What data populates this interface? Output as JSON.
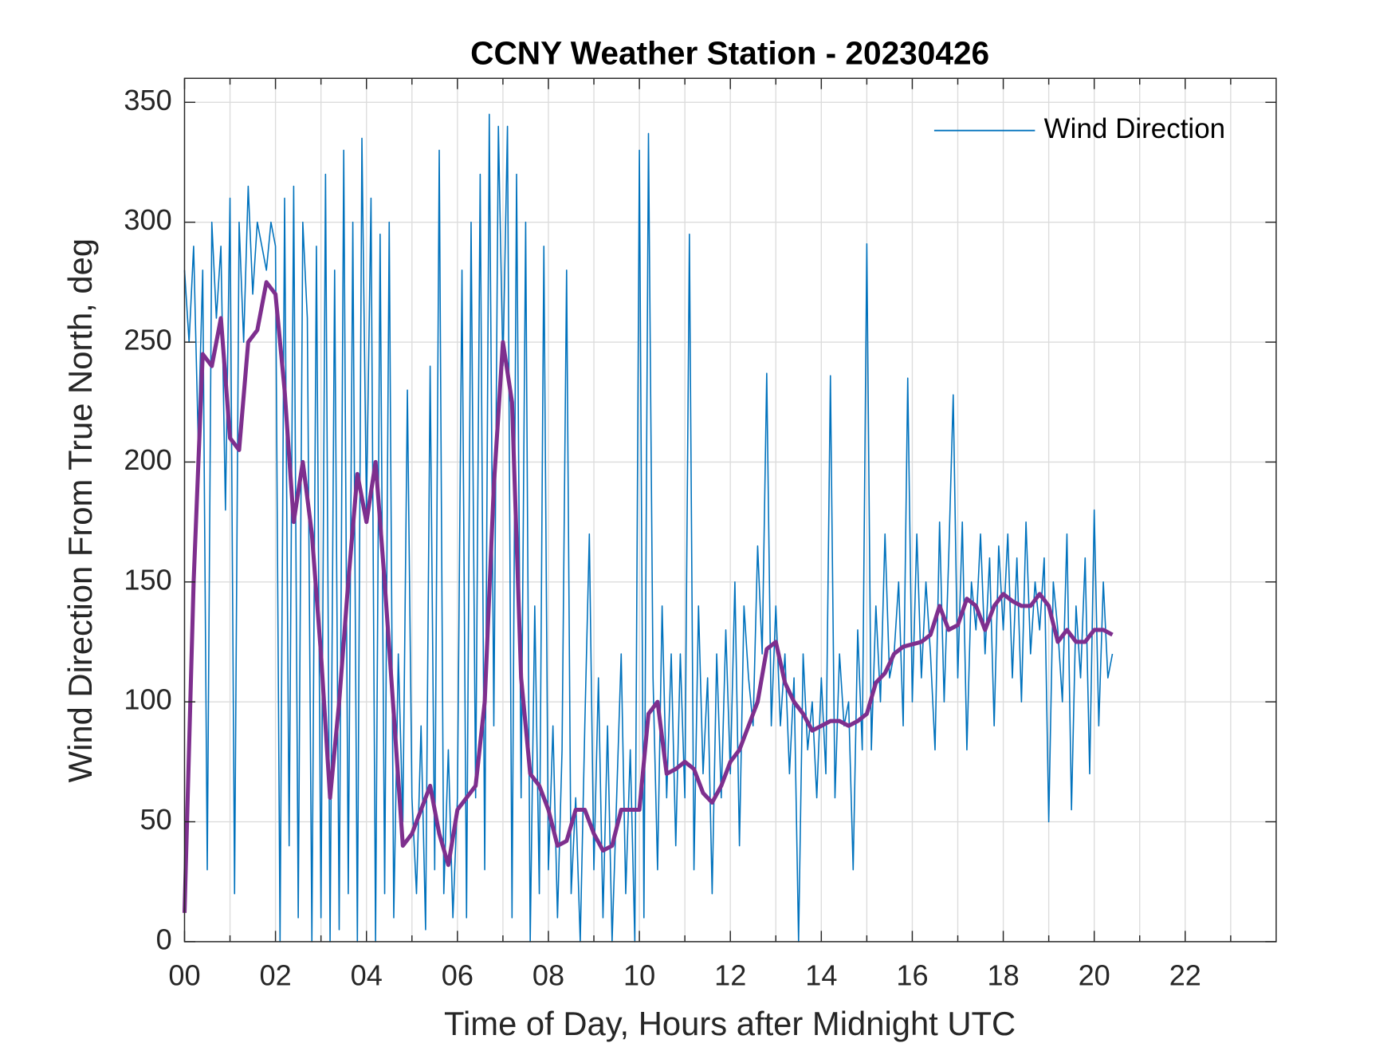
{
  "chart_data": {
    "type": "line",
    "title": "CCNY Weather Station - 20230426",
    "xlabel": "Time of Day, Hours after Midnight UTC",
    "ylabel": "Wind Direction From True North, deg",
    "xlim": [
      0,
      24
    ],
    "ylim": [
      0,
      360
    ],
    "xticks": [
      {
        "value": 0,
        "label": "00"
      },
      {
        "value": 2,
        "label": "02"
      },
      {
        "value": 4,
        "label": "04"
      },
      {
        "value": 6,
        "label": "06"
      },
      {
        "value": 8,
        "label": "08"
      },
      {
        "value": 10,
        "label": "10"
      },
      {
        "value": 12,
        "label": "12"
      },
      {
        "value": 14,
        "label": "14"
      },
      {
        "value": 16,
        "label": "16"
      },
      {
        "value": 18,
        "label": "18"
      },
      {
        "value": 20,
        "label": "20"
      },
      {
        "value": 22,
        "label": "22"
      }
    ],
    "xminorticks": [
      1,
      3,
      5,
      7,
      9,
      11,
      13,
      15,
      17,
      19,
      21,
      23
    ],
    "yticks": [
      0,
      50,
      100,
      150,
      200,
      250,
      300,
      350
    ],
    "grid": true,
    "legend": "northeast",
    "series": [
      {
        "name": "Wind Direction",
        "color": "#0072BD",
        "width": 1.4,
        "x": [
          0,
          0.1,
          0.2,
          0.3,
          0.4,
          0.5,
          0.6,
          0.7,
          0.8,
          0.9,
          1,
          1.1,
          1.2,
          1.3,
          1.4,
          1.5,
          1.6,
          1.7,
          1.8,
          1.9,
          2,
          2.1,
          2.2,
          2.3,
          2.4,
          2.5,
          2.6,
          2.7,
          2.8,
          2.9,
          3,
          3.1,
          3.2,
          3.3,
          3.4,
          3.5,
          3.6,
          3.7,
          3.8,
          3.9,
          4,
          4.1,
          4.2,
          4.3,
          4.4,
          4.5,
          4.6,
          4.7,
          4.8,
          4.9,
          5,
          5.1,
          5.2,
          5.3,
          5.4,
          5.5,
          5.6,
          5.7,
          5.8,
          5.9,
          6,
          6.1,
          6.2,
          6.3,
          6.4,
          6.5,
          6.6,
          6.7,
          6.8,
          6.9,
          7,
          7.1,
          7.2,
          7.3,
          7.4,
          7.5,
          7.6,
          7.7,
          7.8,
          7.9,
          8,
          8.1,
          8.2,
          8.3,
          8.4,
          8.5,
          8.6,
          8.7,
          8.8,
          8.9,
          9,
          9.1,
          9.2,
          9.3,
          9.4,
          9.5,
          9.6,
          9.7,
          9.8,
          9.9,
          10,
          10.1,
          10.2,
          10.3,
          10.4,
          10.5,
          10.6,
          10.7,
          10.8,
          10.9,
          11,
          11.1,
          11.2,
          11.3,
          11.4,
          11.5,
          11.6,
          11.7,
          11.8,
          11.9,
          12,
          12.1,
          12.2,
          12.3,
          12.4,
          12.5,
          12.6,
          12.7,
          12.8,
          12.9,
          13,
          13.1,
          13.2,
          13.3,
          13.4,
          13.5,
          13.6,
          13.7,
          13.8,
          13.9,
          14,
          14.1,
          14.2,
          14.3,
          14.4,
          14.5,
          14.6,
          14.7,
          14.8,
          14.9,
          15,
          15.1,
          15.2,
          15.3,
          15.4,
          15.5,
          15.6,
          15.7,
          15.8,
          15.9,
          16,
          16.1,
          16.2,
          16.3,
          16.4,
          16.5,
          16.6,
          16.7,
          16.8,
          16.9,
          17,
          17.1,
          17.2,
          17.3,
          17.4,
          17.5,
          17.6,
          17.7,
          17.8,
          17.9,
          18,
          18.1,
          18.2,
          18.3,
          18.4,
          18.5,
          18.6,
          18.7,
          18.8,
          18.9,
          19,
          19.1,
          19.2,
          19.3,
          19.4,
          19.5,
          19.6,
          19.7,
          19.8,
          19.9,
          20,
          20.1,
          20.2,
          20.3,
          20.4
        ],
        "values": [
          280,
          250,
          290,
          210,
          280,
          30,
          300,
          260,
          290,
          180,
          310,
          20,
          300,
          250,
          315,
          270,
          300,
          290,
          280,
          300,
          290,
          0,
          310,
          40,
          315,
          10,
          300,
          260,
          0,
          290,
          10,
          320,
          0,
          280,
          5,
          330,
          20,
          300,
          0,
          335,
          180,
          310,
          0,
          295,
          20,
          300,
          10,
          120,
          50,
          230,
          60,
          20,
          90,
          5,
          240,
          30,
          330,
          20,
          80,
          10,
          60,
          280,
          10,
          300,
          60,
          320,
          30,
          345,
          90,
          340,
          240,
          340,
          10,
          320,
          60,
          300,
          0,
          140,
          20,
          290,
          30,
          90,
          10,
          80,
          280,
          20,
          60,
          0,
          90,
          170,
          30,
          110,
          10,
          90,
          0,
          60,
          120,
          20,
          80,
          0,
          330,
          10,
          337,
          110,
          30,
          140,
          60,
          120,
          40,
          120,
          60,
          295,
          30,
          140,
          70,
          110,
          20,
          120,
          60,
          130,
          70,
          150,
          40,
          140,
          110,
          90,
          165,
          120,
          237,
          90,
          140,
          90,
          120,
          70,
          110,
          0,
          120,
          80,
          100,
          60,
          110,
          70,
          236,
          60,
          120,
          90,
          100,
          30,
          130,
          80,
          291,
          80,
          140,
          100,
          170,
          110,
          120,
          150,
          90,
          235,
          100,
          170,
          110,
          150,
          120,
          80,
          175,
          100,
          160,
          228,
          110,
          175,
          80,
          150,
          130,
          170,
          120,
          160,
          90,
          165,
          130,
          170,
          110,
          160,
          100,
          175,
          120,
          150,
          130,
          160,
          50,
          150,
          130,
          100,
          170,
          55,
          140,
          110,
          160,
          70,
          180,
          90,
          150,
          110,
          120
        ]
      },
      {
        "color": "#7E2F8E",
        "width": 4.5,
        "x": [
          0,
          0.2,
          0.4,
          0.6,
          0.8,
          1,
          1.2,
          1.4,
          1.6,
          1.8,
          2,
          2.2,
          2.4,
          2.6,
          2.8,
          3,
          3.2,
          3.4,
          3.6,
          3.8,
          4,
          4.2,
          4.4,
          4.6,
          4.8,
          5,
          5.2,
          5.4,
          5.6,
          5.8,
          6,
          6.2,
          6.4,
          6.6,
          6.8,
          7,
          7.2,
          7.4,
          7.6,
          7.8,
          8,
          8.2,
          8.4,
          8.6,
          8.8,
          9,
          9.2,
          9.4,
          9.6,
          9.8,
          10,
          10.2,
          10.4,
          10.6,
          10.8,
          11,
          11.2,
          11.4,
          11.6,
          11.8,
          12,
          12.2,
          12.4,
          12.6,
          12.8,
          13,
          13.2,
          13.4,
          13.6,
          13.8,
          14,
          14.2,
          14.4,
          14.6,
          14.8,
          15,
          15.2,
          15.4,
          15.6,
          15.8,
          16,
          16.2,
          16.4,
          16.6,
          16.8,
          17,
          17.2,
          17.4,
          17.6,
          17.8,
          18,
          18.2,
          18.4,
          18.6,
          18.8,
          19,
          19.2,
          19.4,
          19.6,
          19.8,
          20,
          20.2,
          20.4
        ],
        "values": [
          12,
          150,
          245,
          240,
          260,
          210,
          205,
          250,
          255,
          275,
          270,
          230,
          175,
          200,
          170,
          120,
          60,
          100,
          150,
          195,
          175,
          200,
          150,
          95,
          40,
          45,
          55,
          65,
          45,
          32,
          55,
          60,
          65,
          100,
          190,
          250,
          225,
          110,
          70,
          65,
          55,
          40,
          42,
          55,
          55,
          45,
          38,
          40,
          55,
          55,
          55,
          95,
          100,
          70,
          72,
          75,
          72,
          62,
          58,
          65,
          75,
          80,
          90,
          100,
          122,
          125,
          108,
          100,
          95,
          88,
          90,
          92,
          92,
          90,
          92,
          95,
          108,
          112,
          120,
          123,
          124,
          125,
          128,
          140,
          130,
          132,
          143,
          140,
          130,
          140,
          145,
          142,
          140,
          140,
          145,
          140,
          125,
          130,
          125,
          125,
          130,
          130,
          128
        ]
      }
    ]
  }
}
